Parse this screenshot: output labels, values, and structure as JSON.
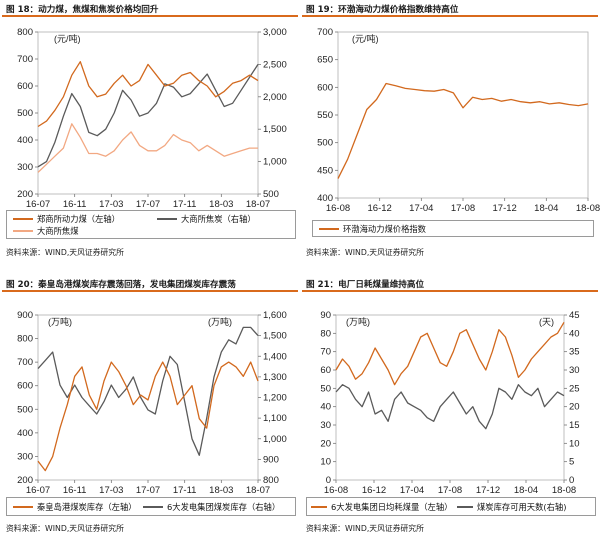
{
  "charts": [
    {
      "title": "图 18：动力煤，焦煤和焦炭价格均回升",
      "source": "资料来源：WIND,天风证券研究所",
      "chart_data": {
        "type": "line",
        "x_tick_labels": [
          "16-07",
          "16-11",
          "17-03",
          "17-07",
          "17-11",
          "18-03",
          "18-07"
        ],
        "y_left": {
          "unit": "(元/吨)",
          "ticks": [
            "200",
            "300",
            "400",
            "500",
            "600",
            "700",
            "800"
          ],
          "lim": [
            200,
            800
          ]
        },
        "y_right": {
          "ticks": [
            "500",
            "1,000",
            "1,500",
            "2,000",
            "2,500",
            "3,000"
          ],
          "lim": [
            500,
            3000
          ]
        },
        "series": [
          {
            "name": "郑商所动力煤（左轴）",
            "axis": "left",
            "color": "#d2691e",
            "values": [
              450,
              470,
              510,
              560,
              640,
              690,
              600,
              560,
              570,
              610,
              640,
              600,
              620,
              680,
              640,
              600,
              610,
              640,
              650,
              620,
              600,
              560,
              580,
              610,
              620,
              640,
              620
            ]
          },
          {
            "name": "大商所焦炭（右轴）",
            "axis": "right",
            "color": "#5a5a5a",
            "values": [
              920,
              1000,
              1300,
              1700,
              2050,
              1850,
              1450,
              1400,
              1500,
              1750,
              2100,
              1950,
              1700,
              1750,
              1900,
              2200,
              2150,
              2000,
              2050,
              2200,
              2350,
              2100,
              1850,
              1900,
              2100,
              2300,
              2500
            ]
          },
          {
            "name": "大商所焦煤",
            "axis": "left",
            "color": "#f2a882",
            "values": [
              280,
              310,
              340,
              370,
              460,
              410,
              350,
              350,
              340,
              360,
              400,
              430,
              380,
              360,
              360,
              380,
              420,
              400,
              390,
              360,
              380,
              360,
              340,
              350,
              360,
              370,
              370
            ]
          }
        ]
      }
    },
    {
      "title": "图 19：环渤海动力煤价格指数维持高位",
      "source": "资料来源：WIND,天风证券研究所",
      "chart_data": {
        "type": "line",
        "x_tick_labels": [
          "16-08",
          "16-12",
          "17-04",
          "17-08",
          "17-12",
          "18-04",
          "18-08"
        ],
        "y_left": {
          "unit": "(元/吨)",
          "ticks": [
            "400",
            "450",
            "500",
            "550",
            "600",
            "650",
            "700"
          ],
          "lim": [
            400,
            700
          ]
        },
        "series": [
          {
            "name": "环渤海动力煤价格指数",
            "axis": "left",
            "color": "#d2691e",
            "values": [
              435,
              470,
              515,
              560,
              578,
              607,
              603,
              598,
              596,
              594,
              593,
              596,
              590,
              563,
              582,
              578,
              580,
              575,
              578,
              574,
              572,
              574,
              570,
              572,
              569,
              567,
              570
            ]
          }
        ]
      }
    },
    {
      "title": "图 20：秦皇岛港煤炭库存震荡回落，发电集团煤炭库存震荡",
      "source": "资料来源：WIND,天风证券研究所",
      "chart_data": {
        "type": "line",
        "x_tick_labels": [
          "16-07",
          "16-11",
          "17-03",
          "17-07",
          "17-11",
          "18-03",
          "18-07"
        ],
        "y_left": {
          "unit": "(万吨)",
          "ticks": [
            "200",
            "300",
            "400",
            "500",
            "600",
            "700",
            "800",
            "900"
          ],
          "lim": [
            200,
            900
          ]
        },
        "y_right": {
          "unit": "(万吨)",
          "ticks": [
            "800",
            "900",
            "1,000",
            "1,100",
            "1,200",
            "1,300",
            "1,400",
            "1,500",
            "1,600"
          ],
          "lim": [
            800,
            1600
          ]
        },
        "series": [
          {
            "name": "秦皇岛港煤炭库存（左轴）",
            "axis": "left",
            "color": "#d2691e",
            "values": [
              280,
              240,
              300,
              420,
              520,
              640,
              680,
              560,
              500,
              620,
              700,
              660,
              600,
              520,
              560,
              540,
              640,
              700,
              640,
              520,
              560,
              600,
              460,
              420,
              600,
              680,
              700,
              680,
              640,
              700,
              620
            ]
          },
          {
            "name": "6大发电集团煤炭库存（右轴）",
            "axis": "right",
            "color": "#5a5a5a",
            "values": [
              1340,
              1380,
              1420,
              1260,
              1200,
              1260,
              1200,
              1160,
              1120,
              1180,
              1260,
              1200,
              1240,
              1300,
              1200,
              1140,
              1120,
              1280,
              1400,
              1360,
              1180,
              1000,
              920,
              1100,
              1300,
              1420,
              1480,
              1460,
              1540,
              1540,
              1500
            ]
          }
        ]
      }
    },
    {
      "title": "图 21：电厂日耗煤量维持高位",
      "source": "资料来源：WIND,天风证券研究所",
      "chart_data": {
        "type": "line",
        "x_tick_labels": [
          "16-08",
          "16-12",
          "17-04",
          "17-08",
          "17-12",
          "18-04",
          "18-08"
        ],
        "y_left": {
          "unit": "(万吨)",
          "ticks": [
            "0",
            "10",
            "20",
            "30",
            "40",
            "50",
            "60",
            "70",
            "80",
            "90"
          ],
          "lim": [
            0,
            90
          ]
        },
        "y_right": {
          "unit": "(天)",
          "ticks": [
            "0",
            "5",
            "10",
            "15",
            "20",
            "25",
            "30",
            "35",
            "40",
            "45"
          ],
          "lim": [
            0,
            45
          ]
        },
        "series": [
          {
            "name": "6大发电集团日均耗煤量（左轴）",
            "axis": "left",
            "color": "#d2691e",
            "values": [
              60,
              66,
              62,
              55,
              58,
              64,
              72,
              66,
              60,
              52,
              58,
              62,
              70,
              78,
              80,
              72,
              64,
              62,
              70,
              80,
              82,
              74,
              66,
              60,
              70,
              82,
              78,
              68,
              56,
              60,
              66,
              70,
              74,
              78,
              80,
              86
            ]
          },
          {
            "name": "煤炭库存可用天数(右轴)",
            "axis": "right",
            "color": "#5a5a5a",
            "values": [
              24,
              26,
              25,
              22,
              20,
              24,
              18,
              19,
              16,
              22,
              24,
              21,
              20,
              19,
              17,
              16,
              20,
              22,
              24,
              21,
              18,
              20,
              16,
              14,
              18,
              25,
              24,
              22,
              26,
              24,
              23,
              25,
              20,
              22,
              24,
              23
            ]
          }
        ]
      }
    }
  ]
}
